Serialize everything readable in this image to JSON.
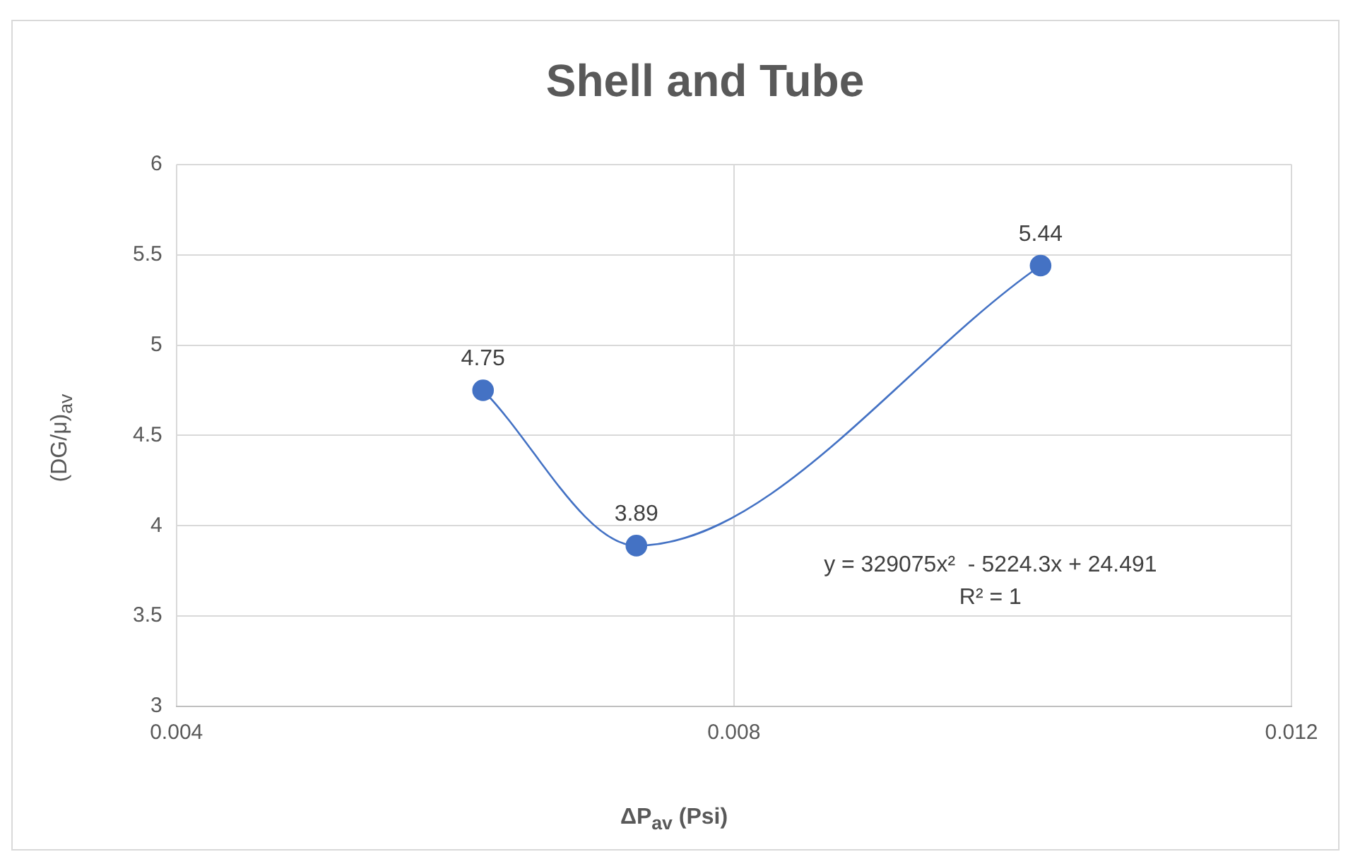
{
  "chart_data": {
    "type": "line",
    "title": "Shell and Tube",
    "xlabel": "ΔP$_{av}$  (Psi)",
    "ylabel": "(DG/μ)$_{av}$",
    "x": [
      0.0062,
      0.0073,
      0.0102
    ],
    "series": [
      {
        "color": "#4472c4",
        "values": [
          4.75,
          3.89,
          5.44
        ]
      }
    ],
    "xlim": [
      0.004,
      0.012
    ],
    "xticks": [
      0.004,
      0.008,
      0.012
    ],
    "ylim": [
      3,
      6
    ],
    "yticks": [
      3,
      3.5,
      4,
      4.5,
      5,
      5.5,
      6
    ],
    "annotations": [
      "y = 329075x²  - 5224.3x + 24.491",
      "R² = 1"
    ],
    "data_labels": true,
    "grid": true,
    "legend": false,
    "marker": "circle",
    "line_style": "solid"
  }
}
